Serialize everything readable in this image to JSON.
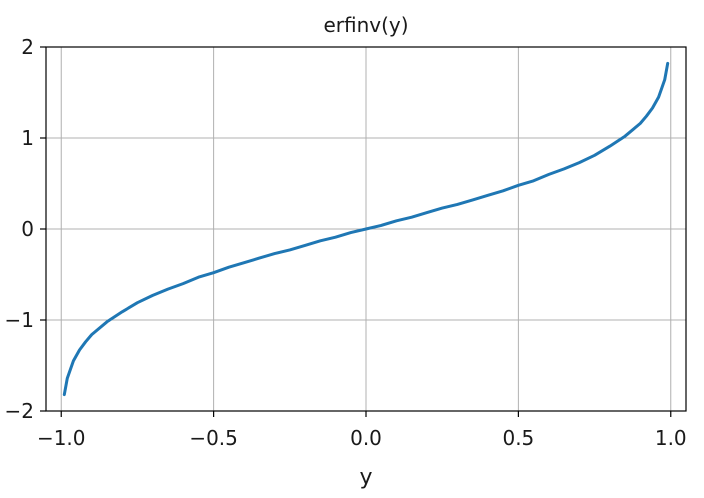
{
  "chart_data": {
    "type": "line",
    "title": "erfinv(y)",
    "xlabel": "y",
    "ylabel": "",
    "xlim": [
      -1.05,
      1.05
    ],
    "ylim": [
      -2,
      2
    ],
    "grid": true,
    "x_ticks": [
      -1.0,
      -0.5,
      0.0,
      0.5,
      1.0
    ],
    "x_tick_labels": [
      "−1.0",
      "−0.5",
      "0.0",
      "0.5",
      "1.0"
    ],
    "y_ticks": [
      -2,
      -1,
      0,
      1,
      2
    ],
    "y_tick_labels": [
      "−2",
      "−1",
      "0",
      "1",
      "2"
    ],
    "series": [
      {
        "color": "#1f77b4",
        "x": [
          -0.99,
          -0.98,
          -0.96,
          -0.94,
          -0.92,
          -0.9,
          -0.85,
          -0.8,
          -0.75,
          -0.7,
          -0.65,
          -0.6,
          -0.55,
          -0.5,
          -0.45,
          -0.4,
          -0.35,
          -0.3,
          -0.25,
          -0.2,
          -0.15,
          -0.1,
          -0.05,
          0.0,
          0.05,
          0.1,
          0.15,
          0.2,
          0.25,
          0.3,
          0.35,
          0.4,
          0.45,
          0.5,
          0.55,
          0.6,
          0.65,
          0.7,
          0.75,
          0.8,
          0.85,
          0.9,
          0.92,
          0.94,
          0.96,
          0.98,
          0.99
        ],
        "y": [
          -1.82,
          -1.64,
          -1.45,
          -1.33,
          -1.24,
          -1.16,
          -1.02,
          -0.91,
          -0.81,
          -0.73,
          -0.66,
          -0.6,
          -0.53,
          -0.48,
          -0.42,
          -0.37,
          -0.32,
          -0.27,
          -0.23,
          -0.18,
          -0.13,
          -0.09,
          -0.04,
          0.0,
          0.04,
          0.09,
          0.13,
          0.18,
          0.23,
          0.27,
          0.32,
          0.37,
          0.42,
          0.48,
          0.53,
          0.6,
          0.66,
          0.73,
          0.81,
          0.91,
          1.02,
          1.16,
          1.24,
          1.33,
          1.45,
          1.64,
          1.82
        ]
      }
    ]
  }
}
